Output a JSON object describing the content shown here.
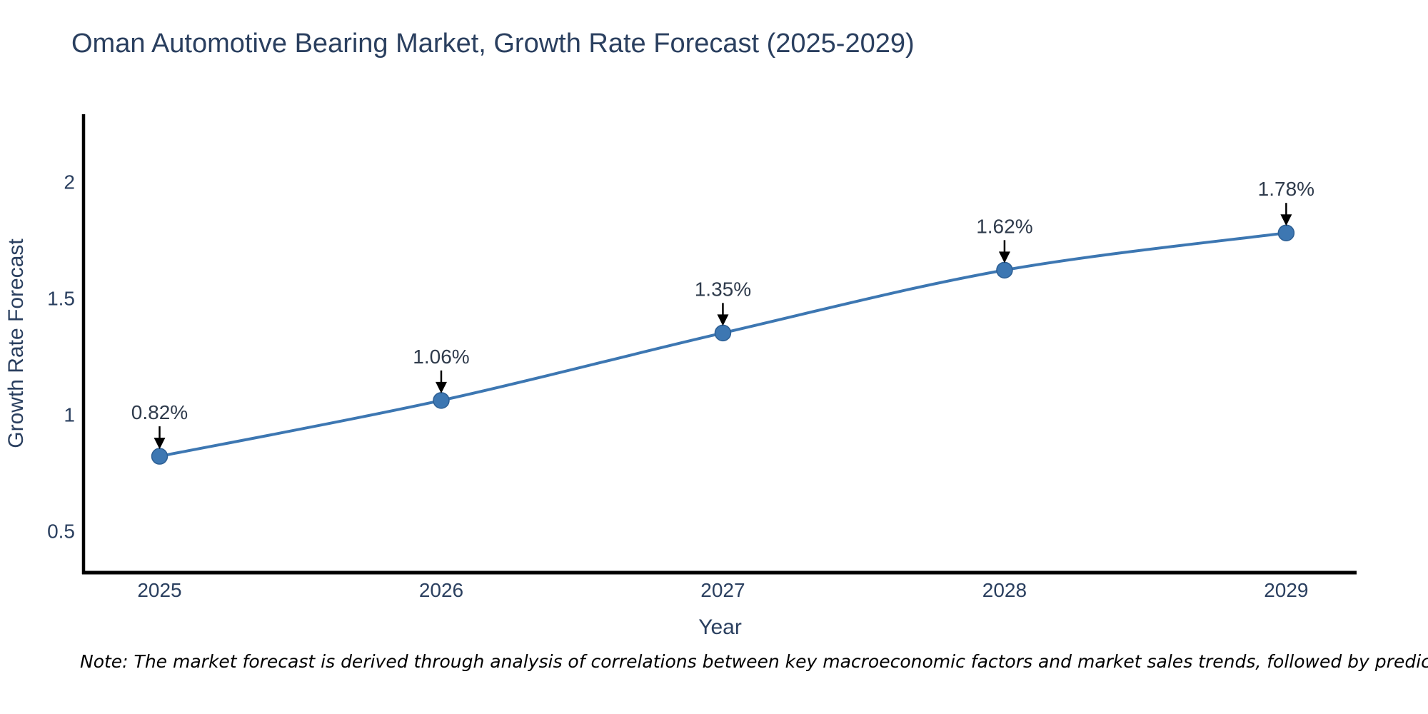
{
  "page": {
    "title": "Oman Automotive Bearing Market, Growth Rate Forecast (2025-2029)",
    "note": "Note: The market forecast is derived through analysis of correlations between key macroeconomic factors and market sales trends, followed by predictive modeling to project future sales"
  },
  "chart_data": {
    "type": "line",
    "title": "Oman Automotive Bearing Market, Growth Rate Forecast (2025-2029)",
    "x": [
      2025,
      2026,
      2027,
      2028,
      2029
    ],
    "values": [
      0.82,
      1.06,
      1.35,
      1.62,
      1.78
    ],
    "point_labels": [
      "0.82%",
      "1.06%",
      "1.35%",
      "1.62%",
      "1.78%"
    ],
    "xlabel": "Year",
    "ylabel": "Growth Rate Forecast",
    "xticks": [
      2025,
      2026,
      2027,
      2028,
      2029
    ],
    "yticks": [
      0.5,
      1,
      1.5,
      2
    ],
    "ytick_labels": [
      "0.5",
      "1",
      "1.5",
      "2"
    ],
    "xlim": [
      2024.73,
      2029.25
    ],
    "ylim": [
      0.32,
      2.29
    ],
    "grid": false,
    "legend": "none",
    "line_shape": "spline",
    "colors": {
      "line": "#3d77b2",
      "marker_fill": "#3d77b2",
      "marker_edge": "#2d5f94",
      "axis_line": "#000000",
      "tick_text": "#2a3f5f",
      "axis_title_text": "#2a3f5f",
      "annotation_text": "#2f3b4c",
      "annotation_arrow": "#000000",
      "title_text": "#2a3f5f"
    }
  }
}
